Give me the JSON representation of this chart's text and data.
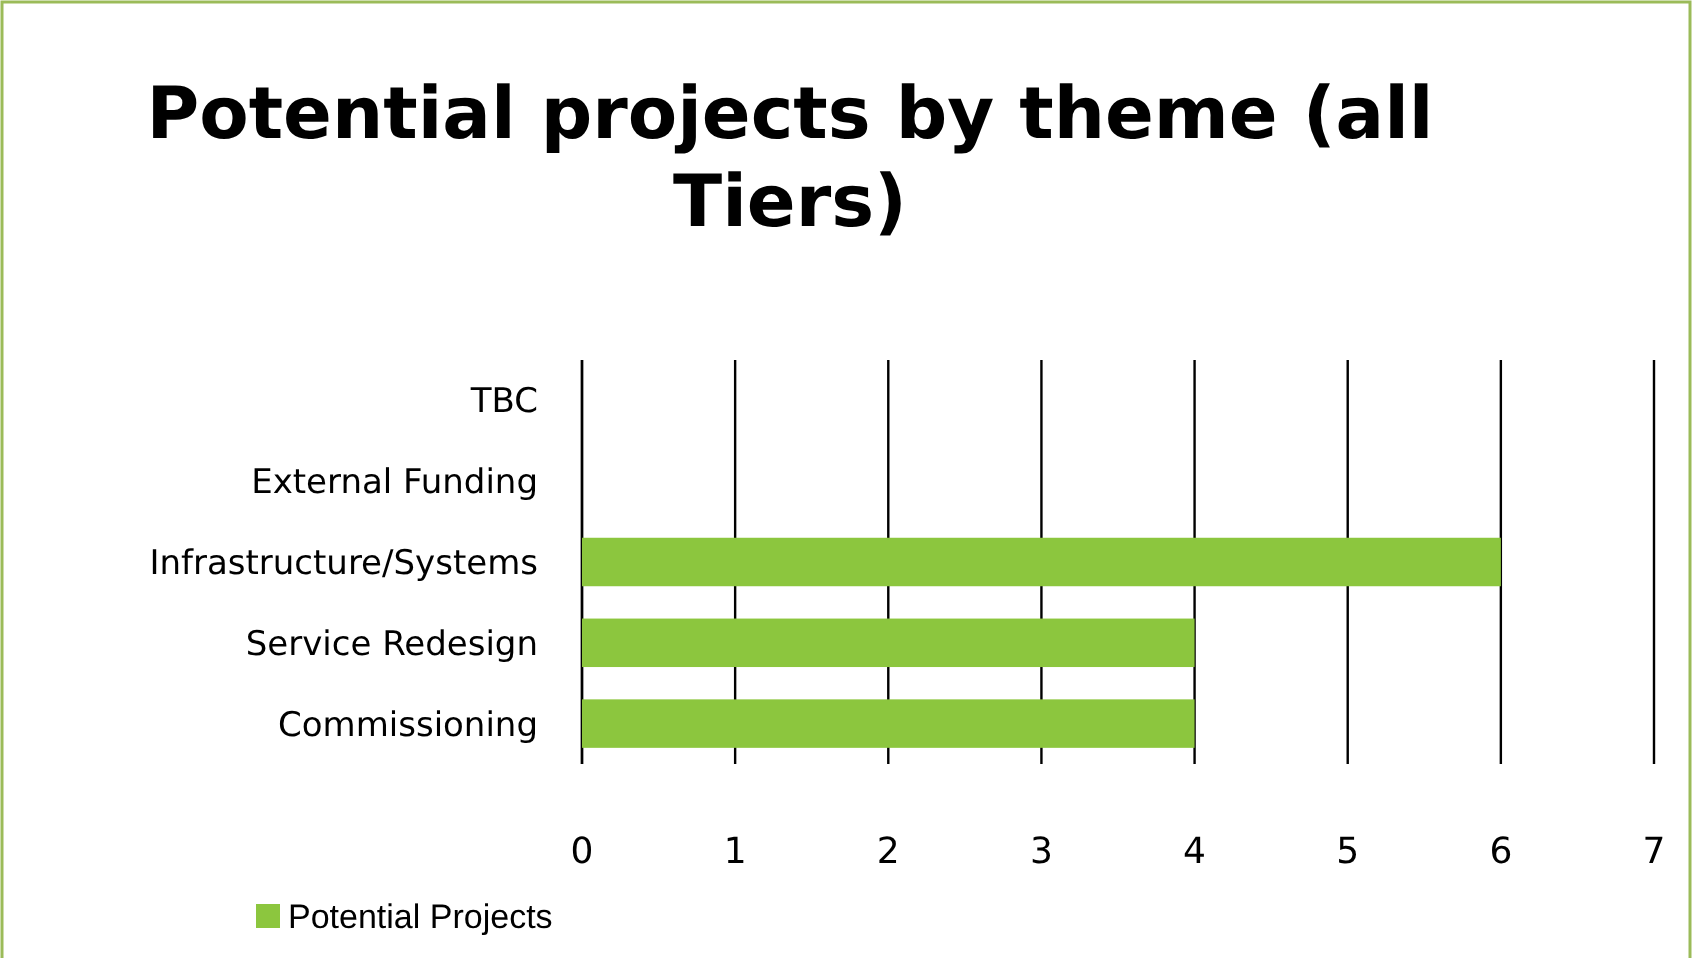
{
  "chart_data": {
    "type": "bar",
    "orientation": "horizontal",
    "title": "Potential projects by theme (all Tiers)",
    "categories": [
      "TBC",
      "External Funding",
      "Infrastructure/Systems",
      "Service Redesign",
      "Commissioning"
    ],
    "series": [
      {
        "name": "Potential Projects",
        "color": "#8cc63e",
        "values": [
          0,
          0,
          6,
          4,
          4
        ]
      }
    ],
    "xlim": [
      0,
      7
    ],
    "xticks": [
      0,
      1,
      2,
      3,
      4,
      5,
      6,
      7
    ],
    "grid": "x",
    "legend": "bottom left"
  }
}
